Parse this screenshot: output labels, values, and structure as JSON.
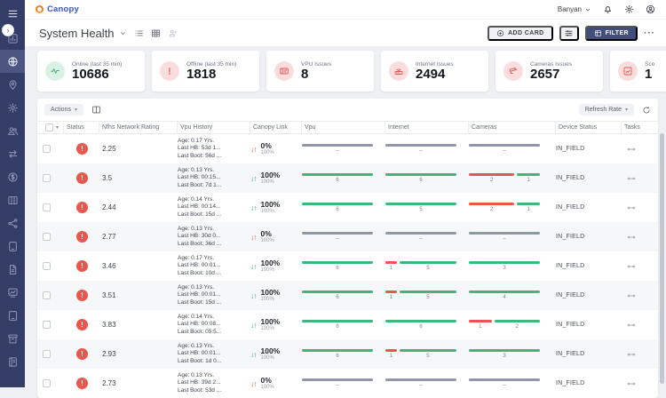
{
  "app": {
    "name": "Canopy"
  },
  "topbar": {
    "org": "Banyan"
  },
  "page": {
    "title": "System Health",
    "collapse_glyph": "›"
  },
  "toolbar": {
    "add_card": "ADD CARD",
    "filter": "FILTER",
    "more": "···"
  },
  "colors": {
    "accent": "#414d7b",
    "green": "#43b57c",
    "red": "#e8564e",
    "gray_bar": "#8e98a6",
    "sidebar": "#343d66",
    "logo_orange": "#f08019",
    "logo_blue": "#3757c9"
  },
  "sidebar": {
    "items": [
      {
        "icon": "menu-icon",
        "active": false
      },
      {
        "icon": "analytics-icon",
        "active": false
      },
      {
        "icon": "globe-icon",
        "active": true
      },
      {
        "icon": "location-icon",
        "active": false
      },
      {
        "icon": "settings-icon",
        "active": false
      },
      {
        "icon": "users-icon",
        "active": false
      },
      {
        "icon": "transfers-icon",
        "active": false
      },
      {
        "icon": "billing-icon",
        "active": false
      },
      {
        "icon": "kanban-icon",
        "active": false
      },
      {
        "icon": "network-icon",
        "active": false
      },
      {
        "icon": "devices-icon",
        "active": false
      },
      {
        "icon": "documents-icon",
        "active": false
      },
      {
        "icon": "reports-icon",
        "active": false
      },
      {
        "icon": "tablet-icon",
        "active": false
      },
      {
        "icon": "archive-icon",
        "active": false
      },
      {
        "icon": "notes-icon",
        "active": false
      }
    ]
  },
  "cards": [
    {
      "label": "Online (last 35 min)",
      "value": "10686",
      "icon": "pulse-icon",
      "tone": "green"
    },
    {
      "label": "Offline (last 35 min)",
      "value": "1818",
      "icon": "alert-icon",
      "tone": "red"
    },
    {
      "label": "VPU Issues",
      "value": "8",
      "icon": "vpu-icon",
      "tone": "red"
    },
    {
      "label": "Internet Issues",
      "value": "2494",
      "icon": "router-icon",
      "tone": "red"
    },
    {
      "label": "Cameras Issues",
      "value": "2657",
      "icon": "camera-icon",
      "tone": "red"
    },
    {
      "label": "Sco",
      "value": "1",
      "icon": "score-icon",
      "tone": "red"
    }
  ],
  "table": {
    "actions_label": "Actions",
    "refresh_label": "Refresh Rate",
    "status_glyph": "!",
    "columns": [
      "",
      "Status",
      "Nfhs Network Rating",
      "Vpu History",
      "Canopy Link",
      "Vpu",
      "Internet",
      "Cameras",
      "Device Status",
      "Tasks"
    ],
    "rows": [
      {
        "rating": "2.25",
        "history": [
          "Age: 0.17 Yrs.",
          "Last HB: 53d 1...",
          "Last Boot: 56d ..."
        ],
        "link": {
          "pct": "0%",
          "sub": "100%",
          "state": "down"
        },
        "vpu": [
          {
            "color": "gray",
            "label": "--",
            "w": 1
          }
        ],
        "internet": [
          {
            "color": "gray",
            "label": "--",
            "w": 1
          }
        ],
        "cameras": [
          {
            "color": "gray",
            "label": "--",
            "w": 1
          }
        ],
        "device_status": "IN_FIELD"
      },
      {
        "rating": "3.5",
        "history": [
          "Age: 0.13 Yrs.",
          "Last HB: 00:15...",
          "Last Boot: 7d 1..."
        ],
        "link": {
          "pct": "100%",
          "sub": "100%",
          "state": "up"
        },
        "vpu": [
          {
            "color": "green",
            "label": "6",
            "w": 6
          }
        ],
        "internet": [
          {
            "color": "green",
            "label": "6",
            "w": 6
          }
        ],
        "cameras": [
          {
            "color": "red",
            "label": "2",
            "w": 2
          },
          {
            "color": "green",
            "label": "1",
            "w": 1
          }
        ],
        "device_status": "IN_FIELD"
      },
      {
        "rating": "2.44",
        "history": [
          "Age: 0.14 Yrs.",
          "Last HB: 00:14...",
          "Last Boot: 15d ..."
        ],
        "link": {
          "pct": "100%",
          "sub": "100%",
          "state": "up"
        },
        "vpu": [
          {
            "color": "green",
            "label": "6",
            "w": 6
          }
        ],
        "internet": [
          {
            "color": "green",
            "label": "5",
            "w": 5
          }
        ],
        "cameras": [
          {
            "color": "red",
            "label": "2",
            "w": 2
          },
          {
            "color": "green",
            "label": "1",
            "w": 1
          }
        ],
        "device_status": "IN_FIELD"
      },
      {
        "rating": "2.77",
        "history": [
          "Age: 0.13 Yrs.",
          "Last HB: 30d 0...",
          "Last Boot: 36d ..."
        ],
        "link": {
          "pct": "0%",
          "sub": "100%",
          "state": "down"
        },
        "vpu": [
          {
            "color": "gray",
            "label": "--",
            "w": 1
          }
        ],
        "internet": [
          {
            "color": "gray",
            "label": "--",
            "w": 1
          }
        ],
        "cameras": [
          {
            "color": "gray",
            "label": "--",
            "w": 1
          }
        ],
        "device_status": "IN_FIELD"
      },
      {
        "rating": "3.46",
        "history": [
          "Age: 0.17 Yrs.",
          "Last HB: 00:01...",
          "Last Boot: 10d ..."
        ],
        "link": {
          "pct": "100%",
          "sub": "100%",
          "state": "up"
        },
        "vpu": [
          {
            "color": "green",
            "label": "6",
            "w": 6
          }
        ],
        "internet": [
          {
            "color": "red",
            "label": "1",
            "w": 1
          },
          {
            "color": "green",
            "label": "5",
            "w": 5
          }
        ],
        "cameras": [
          {
            "color": "green",
            "label": "3",
            "w": 3
          }
        ],
        "device_status": "IN_FIELD"
      },
      {
        "rating": "3.51",
        "history": [
          "Age: 0.13 Yrs.",
          "Last HB: 00:01...",
          "Last Boot: 15d ..."
        ],
        "link": {
          "pct": "100%",
          "sub": "100%",
          "state": "up"
        },
        "vpu": [
          {
            "color": "green",
            "label": "6",
            "w": 6
          }
        ],
        "internet": [
          {
            "color": "red",
            "label": "1",
            "w": 1
          },
          {
            "color": "green",
            "label": "5",
            "w": 5
          }
        ],
        "cameras": [
          {
            "color": "green",
            "label": "4",
            "w": 4
          }
        ],
        "device_status": "IN_FIELD"
      },
      {
        "rating": "3.83",
        "history": [
          "Age: 0.14 Yrs.",
          "Last HB: 00:08...",
          "Last Boot: 05:5..."
        ],
        "link": {
          "pct": "100%",
          "sub": "100%",
          "state": "up"
        },
        "vpu": [
          {
            "color": "green",
            "label": "6",
            "w": 6
          }
        ],
        "internet": [
          {
            "color": "green",
            "label": "6",
            "w": 6
          }
        ],
        "cameras": [
          {
            "color": "red",
            "label": "1",
            "w": 1
          },
          {
            "color": "green",
            "label": "2",
            "w": 2
          }
        ],
        "device_status": "IN_FIELD"
      },
      {
        "rating": "2.93",
        "history": [
          "Age: 0.13 Yrs.",
          "Last HB: 00:01...",
          "Last Boot: 1d 0..."
        ],
        "link": {
          "pct": "100%",
          "sub": "100%",
          "state": "up"
        },
        "vpu": [
          {
            "color": "green",
            "label": "6",
            "w": 6
          }
        ],
        "internet": [
          {
            "color": "red",
            "label": "1",
            "w": 1
          },
          {
            "color": "green",
            "label": "5",
            "w": 5
          }
        ],
        "cameras": [
          {
            "color": "green",
            "label": "3",
            "w": 3
          }
        ],
        "device_status": "IN_FIELD"
      },
      {
        "rating": "2.73",
        "history": [
          "Age: 0.13 Yrs.",
          "Last HB: 39d 2...",
          "Last Boot: 53d ..."
        ],
        "link": {
          "pct": "0%",
          "sub": "100%",
          "state": "down"
        },
        "vpu": [
          {
            "color": "gray",
            "label": "--",
            "w": 1
          }
        ],
        "internet": [
          {
            "color": "gray",
            "label": "--",
            "w": 1
          }
        ],
        "cameras": [
          {
            "color": "gray",
            "label": "--",
            "w": 1
          }
        ],
        "device_status": "IN_FIELD"
      }
    ]
  }
}
